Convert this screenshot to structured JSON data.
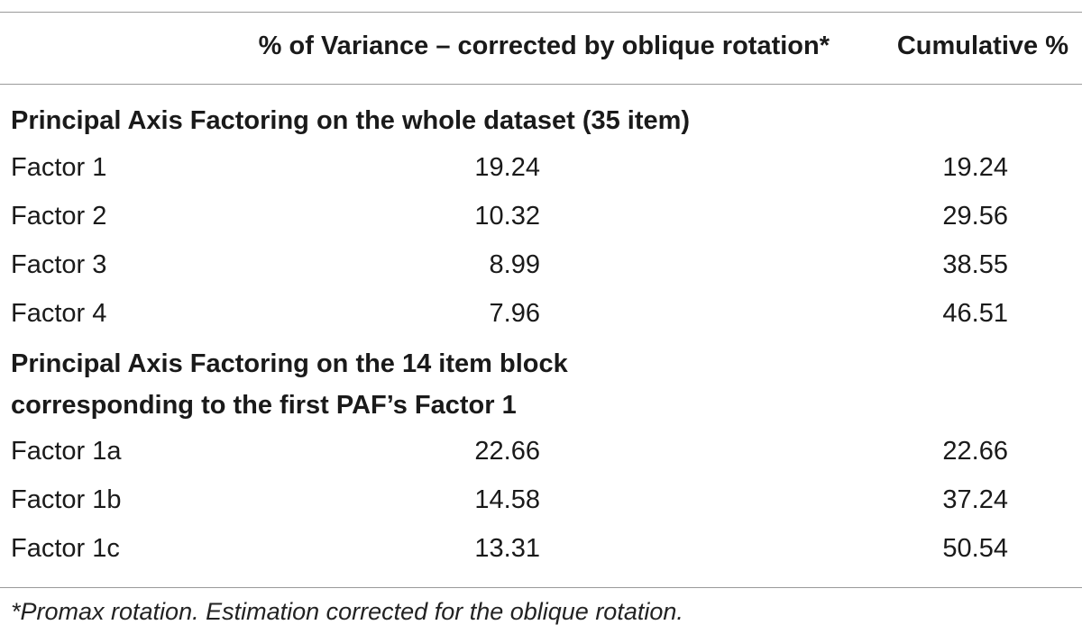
{
  "header": {
    "variance": "% of Variance – corrected by oblique rotation*",
    "cumulative": "Cumulative %"
  },
  "sections": [
    {
      "title_lines": [
        "Principal Axis Factoring on the whole dataset (35 item)"
      ],
      "rows": [
        {
          "label": "Factor 1",
          "variance": "19.24",
          "cumulative": "19.24"
        },
        {
          "label": "Factor 2",
          "variance": "10.32",
          "cumulative": "29.56"
        },
        {
          "label": "Factor 3",
          "variance": "8.99",
          "cumulative": "38.55"
        },
        {
          "label": "Factor 4",
          "variance": "7.96",
          "cumulative": "46.51"
        }
      ]
    },
    {
      "title_lines": [
        "Principal Axis Factoring on the 14 item block",
        "corresponding to the first PAF’s Factor 1"
      ],
      "rows": [
        {
          "label": "Factor 1a",
          "variance": "22.66",
          "cumulative": "22.66"
        },
        {
          "label": "Factor 1b",
          "variance": "14.58",
          "cumulative": "37.24"
        },
        {
          "label": "Factor 1c",
          "variance": "13.31",
          "cumulative": "50.54"
        }
      ]
    }
  ],
  "footnote": "*Promax rotation. Estimation corrected for the oblique rotation."
}
